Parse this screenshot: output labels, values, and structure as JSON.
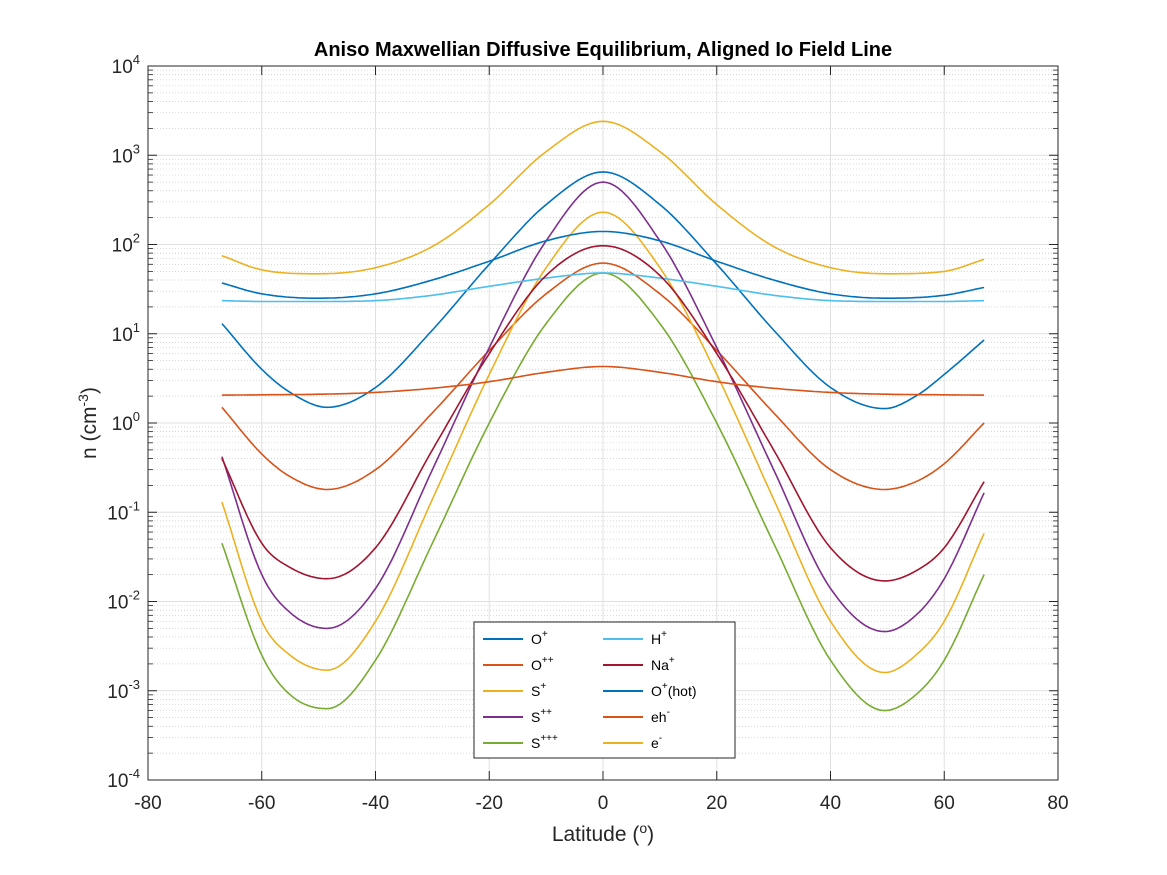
{
  "chart_data": {
    "type": "line",
    "title": "Aniso Maxwellian Diffusive Equilibrium, Aligned Io Field Line",
    "xlabel": {
      "main": "Latitude (",
      "sup": "o",
      "end": ")"
    },
    "ylabel": {
      "main": "n (cm",
      "sup": "-3",
      "end": ")"
    },
    "xlim": [
      -80,
      80
    ],
    "ylim": [
      0.0001,
      10000
    ],
    "yscale": "log",
    "grid": true,
    "minor_grid": true,
    "legend_position": "bottom-center",
    "legend_columns": 2,
    "x_ticks": [
      {
        "value": -80,
        "label": "-80"
      },
      {
        "value": -60,
        "label": "-60"
      },
      {
        "value": -40,
        "label": "-40"
      },
      {
        "value": -20,
        "label": "-20"
      },
      {
        "value": 0,
        "label": "0"
      },
      {
        "value": 20,
        "label": "20"
      },
      {
        "value": 40,
        "label": "40"
      },
      {
        "value": 60,
        "label": "60"
      },
      {
        "value": 80,
        "label": "80"
      }
    ],
    "y_ticks": [
      {
        "value": 0.0001,
        "base": "10",
        "exp": "-4"
      },
      {
        "value": 0.001,
        "base": "10",
        "exp": "-3"
      },
      {
        "value": 0.01,
        "base": "10",
        "exp": "-2"
      },
      {
        "value": 0.1,
        "base": "10",
        "exp": "-1"
      },
      {
        "value": 1,
        "base": "10",
        "exp": "0"
      },
      {
        "value": 10,
        "base": "10",
        "exp": "1"
      },
      {
        "value": 100,
        "base": "10",
        "exp": "2"
      },
      {
        "value": 1000,
        "base": "10",
        "exp": "3"
      },
      {
        "value": 10000,
        "base": "10",
        "exp": "4"
      }
    ],
    "series": [
      {
        "name": "O+",
        "label": "O",
        "sup": "+",
        "suffix": "",
        "color": "#0072BD",
        "x": [
          -67,
          -60,
          -55,
          -48.5,
          -40,
          -30,
          -20,
          -10,
          0,
          10,
          20,
          30,
          40,
          49.5,
          55,
          60,
          67
        ],
        "y": [
          13,
          4.0,
          2.2,
          1.5,
          2.5,
          11,
          60,
          280,
          650,
          280,
          60,
          11,
          2.5,
          1.45,
          2.0,
          3.5,
          8.5
        ]
      },
      {
        "name": "O++",
        "label": "O",
        "sup": "++",
        "suffix": "",
        "color": "#D95319",
        "x": [
          -67,
          -60,
          -55,
          -48.5,
          -40,
          -30,
          -20,
          -10,
          0,
          10,
          20,
          30,
          40,
          49.5,
          55,
          60,
          67
        ],
        "y": [
          1.5,
          0.45,
          0.25,
          0.18,
          0.3,
          1.3,
          6.5,
          28,
          62,
          28,
          6.5,
          1.3,
          0.3,
          0.18,
          0.22,
          0.35,
          1.0
        ]
      },
      {
        "name": "S+",
        "label": "S",
        "sup": "+",
        "suffix": "",
        "color": "#EDB120",
        "x": [
          -67,
          -60,
          -55,
          -48.5,
          -40,
          -30,
          -20,
          -10,
          0,
          10,
          20,
          30,
          40,
          49.5,
          55,
          60,
          67
        ],
        "y": [
          0.13,
          0.006,
          0.0025,
          0.0017,
          0.006,
          0.14,
          3.5,
          55,
          230,
          55,
          3.5,
          0.14,
          0.006,
          0.0016,
          0.0025,
          0.006,
          0.058
        ]
      },
      {
        "name": "S++",
        "label": "S",
        "sup": "++",
        "suffix": "",
        "color": "#7E2F8E",
        "x": [
          -67,
          -60,
          -55,
          -48.5,
          -40,
          -30,
          -20,
          -10,
          0,
          10,
          20,
          30,
          40,
          49.5,
          55,
          60,
          67
        ],
        "y": [
          0.42,
          0.02,
          0.0075,
          0.005,
          0.014,
          0.3,
          7,
          110,
          500,
          110,
          7,
          0.3,
          0.014,
          0.0046,
          0.007,
          0.018,
          0.165
        ]
      },
      {
        "name": "S+++",
        "label": "S",
        "sup": "+++",
        "suffix": "",
        "color": "#77AC30",
        "x": [
          -67,
          -60,
          -55,
          -48.5,
          -40,
          -30,
          -20,
          -10,
          0,
          10,
          20,
          30,
          40,
          49.5,
          55,
          60,
          67
        ],
        "y": [
          0.045,
          0.0025,
          0.0009,
          0.00063,
          0.0022,
          0.045,
          1.0,
          13,
          48,
          13,
          1.0,
          0.045,
          0.0022,
          0.0006,
          0.0009,
          0.0022,
          0.02
        ]
      },
      {
        "name": "H+",
        "label": "H",
        "sup": "+",
        "suffix": "",
        "color": "#4DBEEE",
        "x": [
          -67,
          -60,
          -50,
          -40,
          -30,
          -20,
          -10,
          0,
          10,
          20,
          30,
          40,
          50,
          60,
          67
        ],
        "y": [
          23.5,
          23,
          23,
          23.5,
          27,
          34,
          42,
          48,
          42,
          34,
          27,
          23.5,
          23,
          23,
          23.5
        ]
      },
      {
        "name": "Na+",
        "label": "Na",
        "sup": "+",
        "suffix": "",
        "color": "#A2142F",
        "x": [
          -67,
          -60,
          -55,
          -48.5,
          -40,
          -30,
          -20,
          -10,
          0,
          10,
          20,
          30,
          40,
          49.5,
          55,
          60,
          67
        ],
        "y": [
          0.4,
          0.045,
          0.024,
          0.018,
          0.04,
          0.5,
          6,
          45,
          97,
          45,
          6,
          0.5,
          0.04,
          0.017,
          0.022,
          0.04,
          0.22
        ]
      },
      {
        "name": "O+(hot)",
        "label": "O",
        "sup": "+",
        "suffix": "(hot)",
        "color": "#0072BD",
        "x": [
          -67,
          -60,
          -50,
          -40,
          -30,
          -20,
          -10,
          0,
          10,
          20,
          30,
          40,
          50,
          60,
          67
        ],
        "y": [
          37,
          28,
          25,
          28,
          40,
          65,
          110,
          140,
          110,
          65,
          40,
          28,
          25,
          27,
          33
        ]
      },
      {
        "name": "eh-",
        "label": "eh",
        "sup": "-",
        "suffix": "",
        "color": "#D95319",
        "x": [
          -67,
          -60,
          -50,
          -40,
          -30,
          -20,
          -10,
          0,
          10,
          20,
          30,
          40,
          50,
          60,
          67
        ],
        "y": [
          2.05,
          2.07,
          2.1,
          2.2,
          2.45,
          2.9,
          3.7,
          4.3,
          3.7,
          2.9,
          2.45,
          2.2,
          2.1,
          2.07,
          2.05
        ]
      },
      {
        "name": "e-",
        "label": "e",
        "sup": "-",
        "suffix": "",
        "color": "#EDB120",
        "x": [
          -67,
          -60,
          -50,
          -40,
          -30,
          -20,
          -10,
          0,
          10,
          20,
          30,
          40,
          50,
          60,
          67
        ],
        "y": [
          75,
          52,
          47,
          55,
          95,
          280,
          1100,
          2400,
          1100,
          280,
          95,
          55,
          47,
          50,
          68
        ]
      }
    ]
  }
}
